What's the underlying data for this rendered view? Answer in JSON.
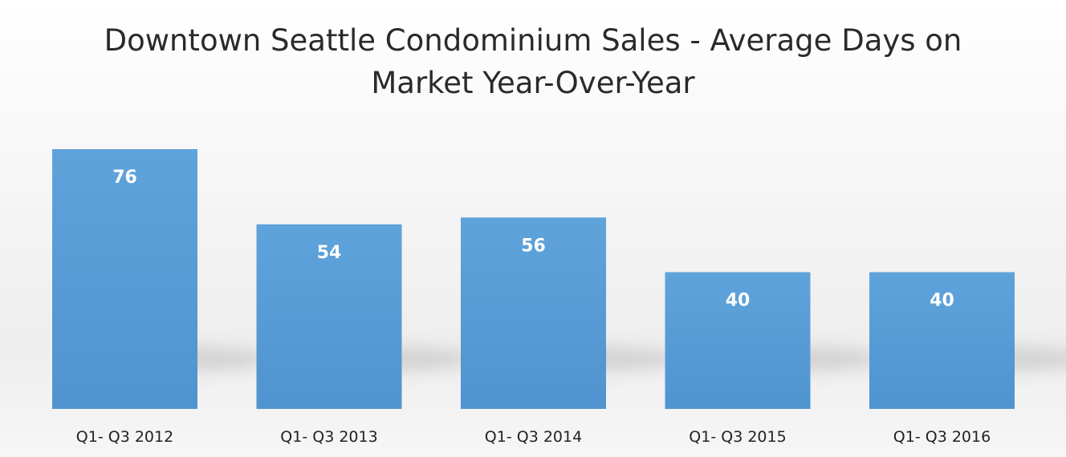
{
  "chart_data": {
    "type": "bar",
    "title_lines": [
      "Downtown Seattle Condominium Sales - Average Days on",
      "Market Year-Over-Year"
    ],
    "categories": [
      "Q1- Q3 2012",
      "Q1- Q3 2013",
      "Q1- Q3 2014",
      "Q1- Q3 2015",
      "Q1- Q3 2016"
    ],
    "values": [
      76,
      54,
      56,
      40,
      40
    ],
    "data_labels": [
      "76",
      "54",
      "56",
      "40",
      "40"
    ],
    "xlabel": "",
    "ylabel": "",
    "ylim": [
      0,
      76
    ],
    "grid": false,
    "legend": "none",
    "bar_color": "#5fa3db",
    "bar_color_dark": "#4f94d0"
  }
}
